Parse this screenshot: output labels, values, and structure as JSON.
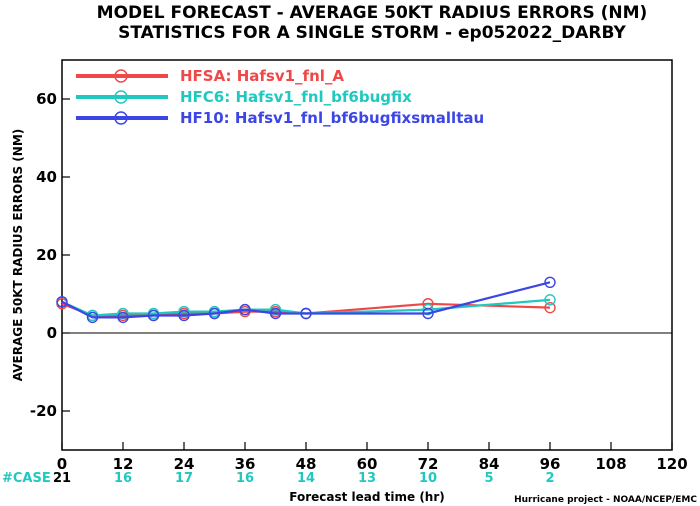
{
  "chart_data": {
    "type": "line",
    "title": "MODEL FORECAST - AVERAGE 50KT RADIUS ERRORS (NM)",
    "subtitle": "STATISTICS FOR A SINGLE STORM - ep052022_DARBY",
    "xlabel": "Forecast lead time (hr)",
    "ylabel": "AVERAGE 50KT RADIUS ERRORS (NM)",
    "xlim": [
      0,
      120
    ],
    "ylim": [
      -30,
      70
    ],
    "xticks": [
      0,
      12,
      24,
      36,
      48,
      60,
      72,
      84,
      96,
      108,
      120
    ],
    "yticks": [
      -20,
      0,
      20,
      40,
      60
    ],
    "zero_line": 0,
    "legend_position": "top-left",
    "series": [
      {
        "name": "HFSA: Hafsv1_fnl_A",
        "color": "#f04848",
        "x": [
          0,
          6,
          12,
          18,
          24,
          30,
          36,
          42,
          48,
          72,
          96
        ],
        "y": [
          7.5,
          4.5,
          4.5,
          4.5,
          5,
          5,
          5.5,
          5.5,
          5,
          7.5,
          6.5
        ]
      },
      {
        "name": "HFC6: Hafsv1_fnl_bf6bugfix",
        "color": "#20c8c0",
        "x": [
          0,
          6,
          12,
          18,
          24,
          30,
          36,
          42,
          48,
          72,
          96
        ],
        "y": [
          8,
          4.5,
          5,
          5,
          5.5,
          5.5,
          6,
          6,
          5,
          6,
          8.5
        ]
      },
      {
        "name": "HF10: Hafsv1_fnl_bf6bugfixsmalltau",
        "color": "#3c46e6",
        "x": [
          0,
          6,
          12,
          18,
          24,
          30,
          36,
          42,
          48,
          72,
          96
        ],
        "y": [
          8,
          4,
          4,
          4.5,
          4.5,
          5,
          6,
          5,
          5,
          5,
          13
        ]
      }
    ],
    "cases": {
      "label": "#CASE",
      "label_color": "#20c8c0",
      "first_color": "#000000",
      "color": "#20c8c0",
      "x": [
        0,
        12,
        24,
        36,
        48,
        60,
        72,
        84,
        96
      ],
      "values": [
        "21",
        "16",
        "17",
        "16",
        "14",
        "13",
        "10",
        "5",
        "2"
      ]
    },
    "credit": "Hurricane project - NOAA/NCEP/EMC"
  }
}
